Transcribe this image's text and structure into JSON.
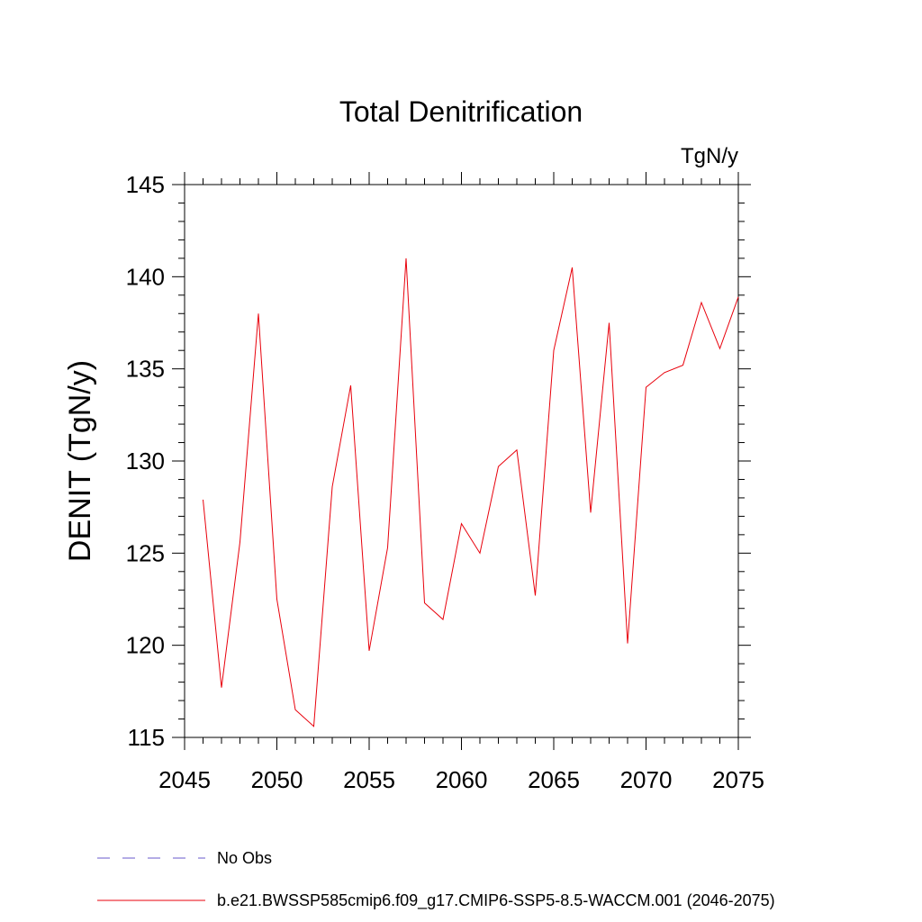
{
  "chart_data": {
    "type": "line",
    "title": "Total Denitrification",
    "units": "TgN/y",
    "ylabel": "DENIT  (TgN/y)",
    "xlabel": "",
    "xlim": [
      2045,
      2075
    ],
    "ylim": [
      115,
      145
    ],
    "xticks": [
      2045,
      2050,
      2055,
      2060,
      2065,
      2070,
      2075
    ],
    "yticks": [
      115,
      120,
      125,
      130,
      135,
      140,
      145
    ],
    "grid": false,
    "legend_position": "bottom-left",
    "series": [
      {
        "name": "b.e21.BWSSP585cmip6.f09_g17.CMIP6-SSP5-8.5-WACCM.001 (2046-2075)",
        "color": "#e8000b",
        "style": "solid",
        "x": [
          2046,
          2047,
          2048,
          2049,
          2050,
          2051,
          2052,
          2053,
          2054,
          2055,
          2056,
          2057,
          2058,
          2059,
          2060,
          2061,
          2062,
          2063,
          2064,
          2065,
          2066,
          2067,
          2068,
          2069,
          2070,
          2071,
          2072,
          2073,
          2074,
          2075
        ],
        "y": [
          127.9,
          117.7,
          125.6,
          138.0,
          122.5,
          116.5,
          115.6,
          128.6,
          134.1,
          119.7,
          125.3,
          141.0,
          122.3,
          121.4,
          126.6,
          125.0,
          129.7,
          130.6,
          122.7,
          136.0,
          140.5,
          127.2,
          137.5,
          120.1,
          134.0,
          134.8,
          135.2,
          138.6,
          136.1,
          138.9
        ]
      }
    ],
    "legend": [
      {
        "label": "No Obs",
        "color": "#6a5acd",
        "style": "dashed"
      },
      {
        "label": "b.e21.BWSSP585cmip6.f09_g17.CMIP6-SSP5-8.5-WACCM.001 (2046-2075)",
        "color": "#e8000b",
        "style": "solid"
      }
    ]
  }
}
